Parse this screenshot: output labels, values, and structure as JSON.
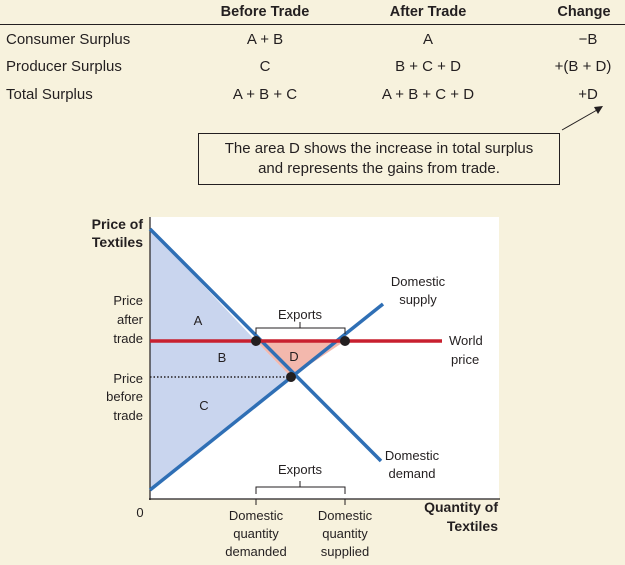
{
  "table": {
    "headers": [
      "Before Trade",
      "After Trade",
      "Change"
    ],
    "rows": [
      {
        "label": "Consumer Surplus",
        "before": "A + B",
        "after": "A",
        "change": "−B"
      },
      {
        "label": "Producer Surplus",
        "before": "C",
        "after": "B + C + D",
        "change": "+(B + D)"
      },
      {
        "label": "Total Surplus",
        "before": "A + B + C",
        "after": "A + B + C + D",
        "change": "+D"
      }
    ]
  },
  "callout": {
    "line1": "The area D shows the increase in total surplus",
    "line2": "and represents the gains from trade."
  },
  "graph": {
    "y_axis_label_1": "Price of",
    "y_axis_label_2": "Textiles",
    "x_axis_label_1": "Quantity of",
    "x_axis_label_2": "Textiles",
    "origin": "0",
    "price_after_1": "Price",
    "price_after_2": "after",
    "price_after_3": "trade",
    "price_before_1": "Price",
    "price_before_2": "before",
    "price_before_3": "trade",
    "supply_1": "Domestic",
    "supply_2": "supply",
    "demand_1": "Domestic",
    "demand_2": "demand",
    "world_1": "World",
    "world_2": "price",
    "area_a": "A",
    "area_b": "B",
    "area_c": "C",
    "area_d": "D",
    "exports_top": "Exports",
    "exports_bottom": "Exports",
    "qd_1": "Domestic",
    "qd_2": "quantity",
    "qd_3": "demanded",
    "qs_1": "Domestic",
    "qs_2": "quantity",
    "qs_3": "supplied"
  },
  "colors": {
    "background": "#f7f2dd",
    "plot_background": "#ffffff",
    "consumer_surplus_fill": "#c9d5ee",
    "gains_fill": "#f3b8ad",
    "curve_blue": "#2f6fb5",
    "world_price_red": "#c8202f"
  }
}
